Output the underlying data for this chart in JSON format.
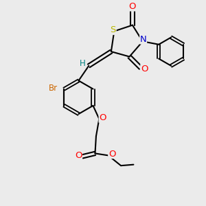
{
  "bg_color": "#ebebeb",
  "atom_colors": {
    "S": "#b8b800",
    "N": "#0000cc",
    "O": "#ff0000",
    "Br": "#cc6600",
    "H": "#008080",
    "C": "#000000"
  },
  "bond_color": "#000000",
  "bond_width": 1.5,
  "font_size": 8.5,
  "fig_size": [
    3.0,
    3.0
  ],
  "dpi": 100
}
